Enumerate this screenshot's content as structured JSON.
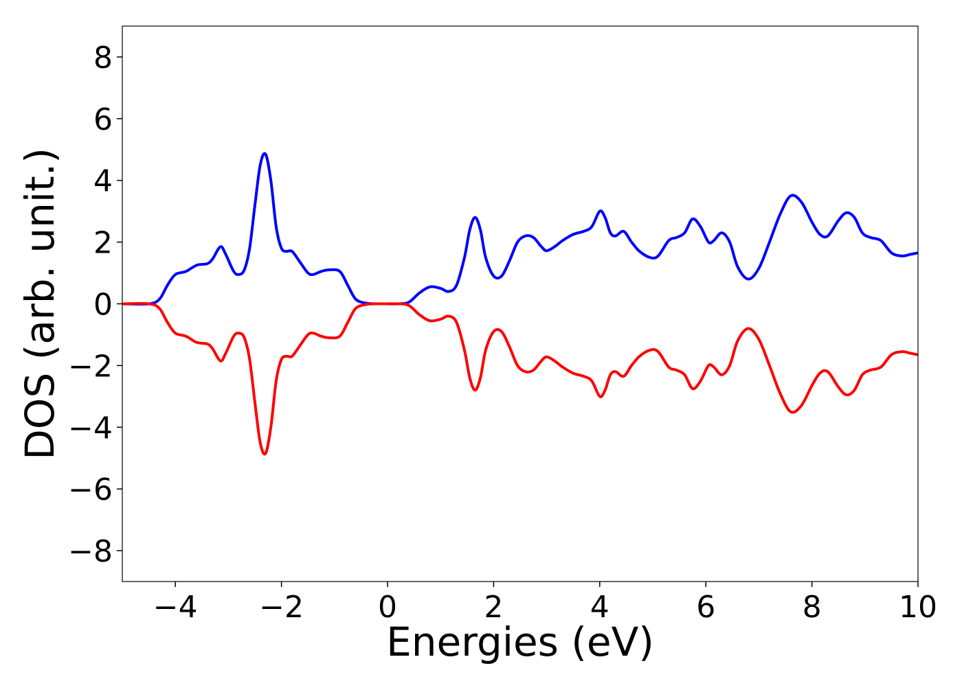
{
  "chart_data": {
    "type": "line",
    "title": "",
    "xlabel": "Energies (eV)",
    "ylabel": "DOS (arb. unit.)",
    "xlim": [
      -5,
      10
    ],
    "ylim": [
      -9,
      9
    ],
    "x_ticks": [
      -4,
      -2,
      0,
      2,
      4,
      6,
      8,
      10
    ],
    "y_ticks": [
      -8,
      -6,
      -4,
      -2,
      0,
      2,
      4,
      6,
      8
    ],
    "x_tick_labels": [
      "−4",
      "−2",
      "0",
      "2",
      "4",
      "6",
      "8",
      "10"
    ],
    "y_tick_labels": [
      "−8",
      "−6",
      "−4",
      "−2",
      "0",
      "2",
      "4",
      "6",
      "8"
    ],
    "grid": false,
    "legend": "none",
    "series": [
      {
        "color": "#0000ff",
        "x": [
          -5,
          -4.5,
          -4.3,
          -4.15,
          -4.0,
          -3.8,
          -3.6,
          -3.4,
          -3.3,
          -3.15,
          -3.05,
          -2.9,
          -2.8,
          -2.7,
          -2.6,
          -2.5,
          -2.4,
          -2.3,
          -2.2,
          -2.1,
          -2.0,
          -1.9,
          -1.8,
          -1.65,
          -1.5,
          -1.4,
          -1.25,
          -1.1,
          -0.9,
          -0.75,
          -0.6,
          -0.4,
          -0.2,
          0,
          0.2,
          0.4,
          0.6,
          0.8,
          1.0,
          1.15,
          1.3,
          1.45,
          1.55,
          1.65,
          1.75,
          1.85,
          2.0,
          2.15,
          2.3,
          2.45,
          2.6,
          2.75,
          2.9,
          3.0,
          3.15,
          3.3,
          3.5,
          3.7,
          3.85,
          4.0,
          4.1,
          4.2,
          4.3,
          4.45,
          4.6,
          4.75,
          4.95,
          5.1,
          5.3,
          5.45,
          5.6,
          5.75,
          5.9,
          6.05,
          6.15,
          6.3,
          6.45,
          6.6,
          6.8,
          7.0,
          7.2,
          7.4,
          7.6,
          7.8,
          8.0,
          8.15,
          8.3,
          8.5,
          8.65,
          8.8,
          8.95,
          9.1,
          9.3,
          9.5,
          9.7,
          9.85,
          10.0
        ],
        "y": [
          0,
          0,
          0.15,
          0.6,
          0.95,
          1.05,
          1.25,
          1.3,
          1.45,
          1.85,
          1.6,
          1.05,
          0.95,
          1.1,
          1.8,
          3.2,
          4.5,
          4.85,
          4.0,
          2.5,
          1.8,
          1.7,
          1.7,
          1.35,
          1.0,
          0.95,
          1.05,
          1.1,
          1.05,
          0.6,
          0.15,
          0.02,
          0,
          0,
          0,
          0.05,
          0.35,
          0.55,
          0.5,
          0.4,
          0.6,
          1.5,
          2.4,
          2.8,
          2.4,
          1.5,
          0.9,
          0.9,
          1.4,
          2.0,
          2.2,
          2.15,
          1.85,
          1.72,
          1.85,
          2.05,
          2.25,
          2.35,
          2.5,
          3.0,
          2.8,
          2.3,
          2.2,
          2.35,
          2.0,
          1.7,
          1.5,
          1.55,
          2.05,
          2.15,
          2.3,
          2.75,
          2.5,
          2.0,
          2.05,
          2.3,
          2.0,
          1.2,
          0.8,
          1.15,
          2.0,
          2.9,
          3.5,
          3.3,
          2.65,
          2.25,
          2.2,
          2.7,
          2.95,
          2.8,
          2.3,
          2.15,
          2.05,
          1.65,
          1.55,
          1.6,
          1.65
        ]
      },
      {
        "color": "#ff0000",
        "x": [
          -5,
          -4.5,
          -4.3,
          -4.15,
          -4.0,
          -3.8,
          -3.6,
          -3.4,
          -3.3,
          -3.15,
          -3.05,
          -2.9,
          -2.8,
          -2.7,
          -2.6,
          -2.5,
          -2.4,
          -2.3,
          -2.2,
          -2.1,
          -2.0,
          -1.9,
          -1.8,
          -1.65,
          -1.5,
          -1.4,
          -1.25,
          -1.1,
          -0.9,
          -0.75,
          -0.6,
          -0.4,
          -0.2,
          0,
          0.2,
          0.4,
          0.6,
          0.8,
          1.0,
          1.15,
          1.3,
          1.45,
          1.55,
          1.65,
          1.75,
          1.85,
          2.0,
          2.15,
          2.3,
          2.45,
          2.6,
          2.75,
          2.9,
          3.0,
          3.15,
          3.3,
          3.5,
          3.7,
          3.85,
          4.0,
          4.1,
          4.2,
          4.3,
          4.45,
          4.6,
          4.75,
          4.95,
          5.1,
          5.3,
          5.45,
          5.6,
          5.75,
          5.9,
          6.05,
          6.15,
          6.3,
          6.45,
          6.6,
          6.8,
          7.0,
          7.2,
          7.4,
          7.6,
          7.8,
          8.0,
          8.15,
          8.3,
          8.5,
          8.65,
          8.8,
          8.95,
          9.1,
          9.3,
          9.5,
          9.7,
          9.85,
          10.0
        ],
        "y": [
          0,
          0,
          -0.15,
          -0.6,
          -0.95,
          -1.05,
          -1.25,
          -1.3,
          -1.45,
          -1.85,
          -1.6,
          -1.05,
          -0.95,
          -1.1,
          -1.8,
          -3.2,
          -4.5,
          -4.85,
          -4.0,
          -2.5,
          -1.8,
          -1.7,
          -1.7,
          -1.35,
          -1.0,
          -0.95,
          -1.05,
          -1.1,
          -1.05,
          -0.6,
          -0.15,
          -0.02,
          0,
          0,
          0,
          -0.05,
          -0.35,
          -0.55,
          -0.5,
          -0.4,
          -0.6,
          -1.5,
          -2.4,
          -2.8,
          -2.4,
          -1.5,
          -0.9,
          -0.9,
          -1.4,
          -2.0,
          -2.2,
          -2.15,
          -1.85,
          -1.72,
          -1.85,
          -2.05,
          -2.25,
          -2.35,
          -2.5,
          -3.0,
          -2.8,
          -2.3,
          -2.2,
          -2.35,
          -2.0,
          -1.7,
          -1.5,
          -1.55,
          -2.05,
          -2.15,
          -2.3,
          -2.75,
          -2.5,
          -2.0,
          -2.05,
          -2.3,
          -2.0,
          -1.2,
          -0.8,
          -1.15,
          -2.0,
          -2.9,
          -3.5,
          -3.3,
          -2.65,
          -2.25,
          -2.2,
          -2.7,
          -2.95,
          -2.8,
          -2.3,
          -2.15,
          -2.05,
          -1.65,
          -1.55,
          -1.6,
          -1.65
        ]
      }
    ]
  }
}
